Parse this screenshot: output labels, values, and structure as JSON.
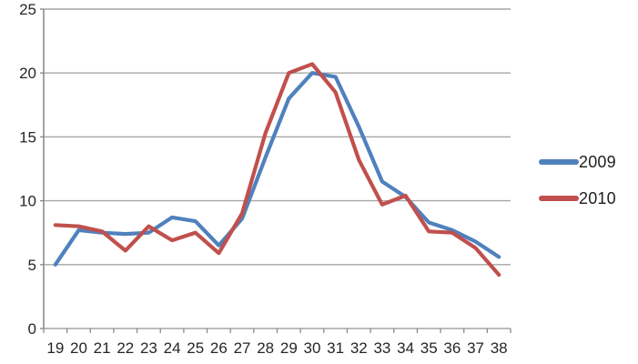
{
  "chart_data": {
    "type": "line",
    "title": "",
    "xlabel": "",
    "ylabel": "",
    "x": [
      19,
      20,
      21,
      22,
      23,
      24,
      25,
      26,
      27,
      28,
      29,
      30,
      31,
      32,
      33,
      34,
      35,
      36,
      37,
      38
    ],
    "series": [
      {
        "name": "2009",
        "color": "#4F81BD",
        "values": [
          5.0,
          7.7,
          7.5,
          7.4,
          7.5,
          8.7,
          8.4,
          6.5,
          8.6,
          13.4,
          18.0,
          20.0,
          19.7,
          15.8,
          11.5,
          10.3,
          8.3,
          7.7,
          6.8,
          5.6
        ]
      },
      {
        "name": "2010",
        "color": "#C0504D",
        "values": [
          8.1,
          8.0,
          7.6,
          6.1,
          8.0,
          6.9,
          7.5,
          5.9,
          9.0,
          15.3,
          20.0,
          20.7,
          18.5,
          13.2,
          9.7,
          10.4,
          7.6,
          7.5,
          6.3,
          4.2
        ]
      }
    ],
    "ylim": [
      0,
      25
    ],
    "yticks": [
      0,
      5,
      10,
      15,
      20,
      25
    ],
    "grid": true,
    "legend_position": "right",
    "colors": {
      "gridline": "#A6A6A6",
      "axis": "#8C8C8C",
      "tick_text": "#262626",
      "background": "#FFFFFF"
    }
  }
}
